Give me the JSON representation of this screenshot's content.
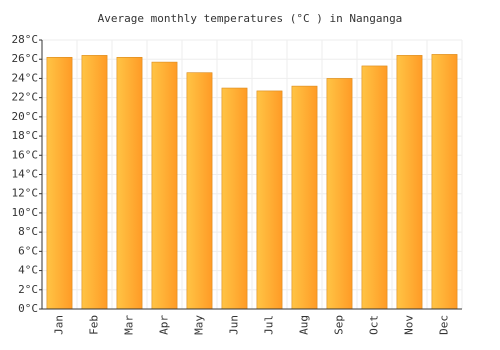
{
  "chart_data": {
    "type": "bar",
    "title": "Average monthly temperatures (°C ) in Nanganga",
    "categories": [
      "Jan",
      "Feb",
      "Mar",
      "Apr",
      "May",
      "Jun",
      "Jul",
      "Aug",
      "Sep",
      "Oct",
      "Nov",
      "Dec"
    ],
    "values": [
      26.2,
      26.4,
      26.2,
      25.7,
      24.6,
      23.0,
      22.7,
      23.2,
      24.0,
      25.3,
      26.4,
      26.5
    ],
    "color": "#ffaa2e",
    "ylim": [
      0,
      28
    ],
    "yticks": [
      {
        "value": 0,
        "label": "0°C"
      },
      {
        "value": 2,
        "label": "2°C"
      },
      {
        "value": 4,
        "label": "4°C"
      },
      {
        "value": 6,
        "label": "6°C"
      },
      {
        "value": 8,
        "label": "8°C"
      },
      {
        "value": 10,
        "label": "10°C"
      },
      {
        "value": 12,
        "label": "12°C"
      },
      {
        "value": 14,
        "label": "14°C"
      },
      {
        "value": 16,
        "label": "16°C"
      },
      {
        "value": 18,
        "label": "18°C"
      },
      {
        "value": 20,
        "label": "20°C"
      },
      {
        "value": 22,
        "label": "22°C"
      },
      {
        "value": 24,
        "label": "24°C"
      },
      {
        "value": 26,
        "label": "26°C"
      },
      {
        "value": 28,
        "label": "28°C"
      }
    ],
    "grid": true
  }
}
